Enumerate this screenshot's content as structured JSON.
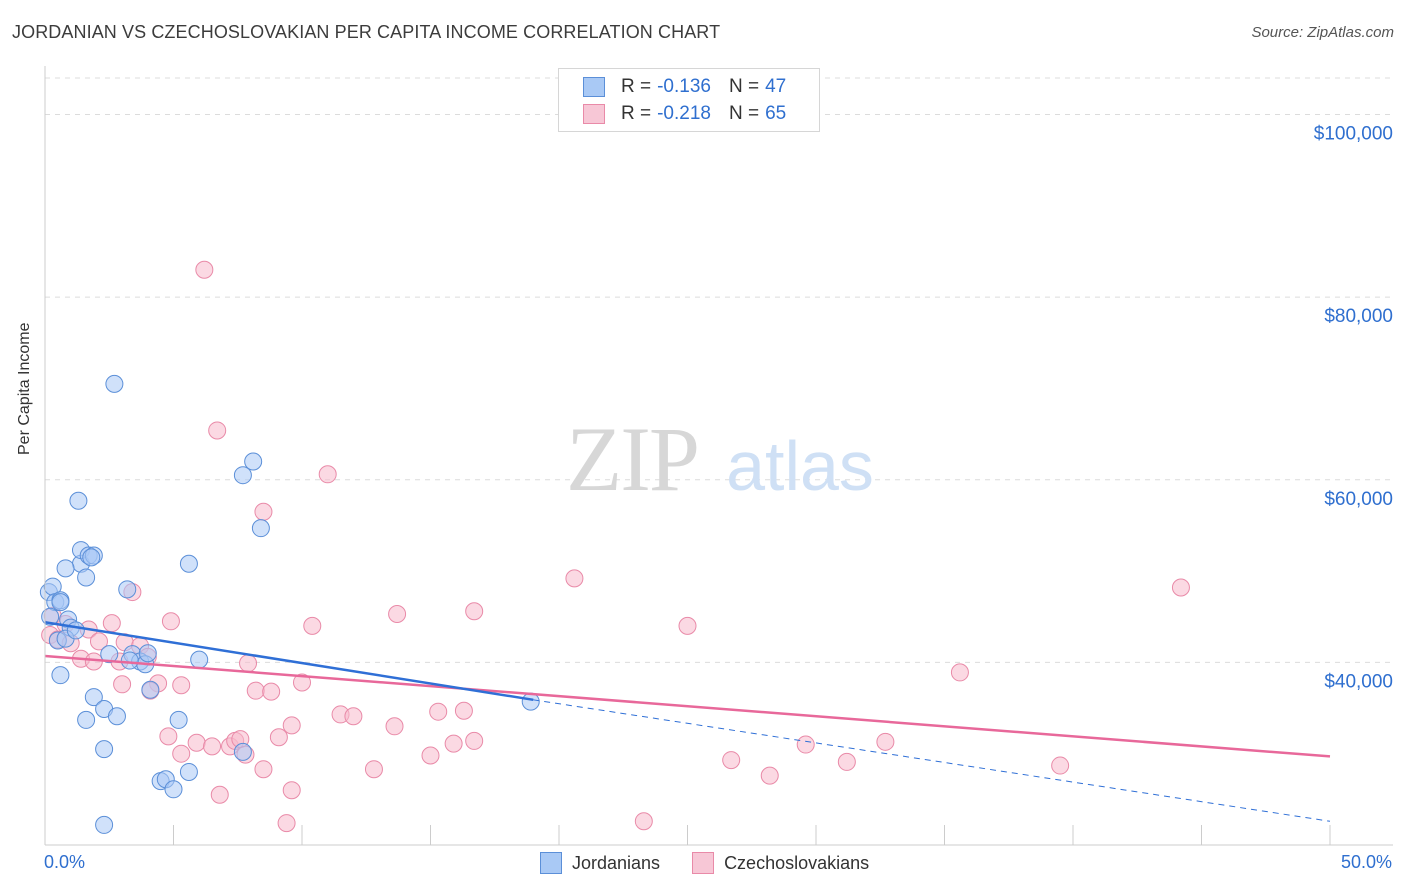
{
  "title": "JORDANIAN VS CZECHOSLOVAKIAN PER CAPITA INCOME CORRELATION CHART",
  "source": "Source: ZipAtlas.com",
  "watermark": {
    "zip": "ZIP",
    "atlas": "atlas"
  },
  "legend": {
    "rows": [
      {
        "r_label": "R = ",
        "r_value": "-0.136",
        "n_label": "N = ",
        "n_value": "47"
      },
      {
        "r_label": "R = ",
        "r_value": "-0.218",
        "n_label": "N = ",
        "n_value": "65"
      }
    ]
  },
  "colors": {
    "blue_fill": "#a9c9f5",
    "blue_stroke": "#5b8fd8",
    "blue_line": "#2f6fd6",
    "pink_fill": "#f7b9cc",
    "pink_stroke": "#e98aa8",
    "pink_line": "#e8689a",
    "axis_text": "#2f6fcf",
    "grid": "#dcdcdc"
  },
  "chart_data": {
    "type": "scatter",
    "title": "JORDANIAN VS CZECHOSLOVAKIAN PER CAPITA INCOME CORRELATION CHART",
    "xlabel": "",
    "ylabel": "Per Capita Income",
    "xlim": [
      0,
      50
    ],
    "ylim": [
      20000,
      104000
    ],
    "x_tick_labels": [
      "0.0%",
      "50.0%"
    ],
    "y_ticks": [
      40000,
      60000,
      80000,
      100000
    ],
    "y_tick_labels": [
      "$40,000",
      "$60,000",
      "$80,000",
      "$100,000"
    ],
    "series": [
      {
        "name": "Jordanians",
        "r": -0.136,
        "n": 47,
        "trend": {
          "x0": 0,
          "y0": 44400,
          "x1": 19,
          "y1": 35900,
          "dash_x1": 50,
          "dash_y1": 22600
        },
        "points": [
          [
            0.15,
            47700
          ],
          [
            0.3,
            48300
          ],
          [
            0.4,
            46600
          ],
          [
            0.6,
            46800
          ],
          [
            0.2,
            45000
          ],
          [
            0.9,
            44700
          ],
          [
            1.0,
            43800
          ],
          [
            0.5,
            42400
          ],
          [
            0.8,
            42600
          ],
          [
            0.6,
            38600
          ],
          [
            2.7,
            70500
          ],
          [
            1.3,
            57700
          ],
          [
            1.4,
            50800
          ],
          [
            1.6,
            49300
          ],
          [
            1.4,
            52300
          ],
          [
            1.7,
            51700
          ],
          [
            1.9,
            51700
          ],
          [
            1.8,
            51500
          ],
          [
            0.8,
            50300
          ],
          [
            3.2,
            48000
          ],
          [
            5.6,
            50800
          ],
          [
            7.7,
            60500
          ],
          [
            8.1,
            62000
          ],
          [
            8.4,
            54700
          ],
          [
            2.5,
            40900
          ],
          [
            3.4,
            40900
          ],
          [
            3.7,
            40100
          ],
          [
            3.9,
            39800
          ],
          [
            6.0,
            40300
          ],
          [
            3.3,
            40200
          ],
          [
            1.9,
            36200
          ],
          [
            2.3,
            34900
          ],
          [
            2.8,
            34100
          ],
          [
            1.6,
            33700
          ],
          [
            5.2,
            33700
          ],
          [
            4.1,
            37000
          ],
          [
            2.3,
            30500
          ],
          [
            7.7,
            30200
          ],
          [
            4.5,
            27000
          ],
          [
            4.7,
            27200
          ],
          [
            5.6,
            28000
          ],
          [
            5.0,
            26100
          ],
          [
            2.3,
            22200
          ],
          [
            18.9,
            35700
          ],
          [
            0.6,
            46600
          ],
          [
            1.2,
            43500
          ],
          [
            4.0,
            41000
          ]
        ]
      },
      {
        "name": "Czechoslovakians",
        "r": -0.218,
        "n": 65,
        "trend": {
          "x0": 0,
          "y0": 40700,
          "x1": 50,
          "y1": 29700
        },
        "points": [
          [
            6.2,
            83000
          ],
          [
            6.7,
            65400
          ],
          [
            8.5,
            56500
          ],
          [
            11.0,
            60600
          ],
          [
            20.6,
            49200
          ],
          [
            44.2,
            48200
          ],
          [
            3.4,
            47700
          ],
          [
            0.3,
            45100
          ],
          [
            0.8,
            44200
          ],
          [
            1.7,
            43600
          ],
          [
            4.9,
            44500
          ],
          [
            10.4,
            44000
          ],
          [
            13.7,
            45300
          ],
          [
            16.7,
            45600
          ],
          [
            25.0,
            44000
          ],
          [
            0.2,
            43000
          ],
          [
            0.5,
            42500
          ],
          [
            1.0,
            42100
          ],
          [
            2.1,
            42300
          ],
          [
            2.6,
            44300
          ],
          [
            3.1,
            42200
          ],
          [
            3.7,
            41800
          ],
          [
            4.0,
            40600
          ],
          [
            1.4,
            40400
          ],
          [
            1.9,
            40100
          ],
          [
            2.9,
            40100
          ],
          [
            7.9,
            39900
          ],
          [
            3.0,
            37600
          ],
          [
            4.4,
            37700
          ],
          [
            5.3,
            37500
          ],
          [
            10.0,
            37800
          ],
          [
            8.2,
            36900
          ],
          [
            8.8,
            36800
          ],
          [
            4.1,
            36900
          ],
          [
            35.6,
            38900
          ],
          [
            11.5,
            34300
          ],
          [
            12.0,
            34100
          ],
          [
            9.6,
            33100
          ],
          [
            13.6,
            33000
          ],
          [
            15.3,
            34600
          ],
          [
            16.3,
            34700
          ],
          [
            4.8,
            31900
          ],
          [
            9.1,
            31800
          ],
          [
            5.9,
            31200
          ],
          [
            5.3,
            30000
          ],
          [
            6.5,
            30800
          ],
          [
            7.2,
            30800
          ],
          [
            7.4,
            31400
          ],
          [
            7.6,
            31600
          ],
          [
            7.8,
            29900
          ],
          [
            15.0,
            29800
          ],
          [
            15.9,
            31100
          ],
          [
            16.7,
            31400
          ],
          [
            26.7,
            29300
          ],
          [
            29.6,
            31000
          ],
          [
            31.2,
            29100
          ],
          [
            32.7,
            31300
          ],
          [
            39.5,
            28700
          ],
          [
            8.5,
            28300
          ],
          [
            12.8,
            28300
          ],
          [
            28.2,
            27600
          ],
          [
            6.8,
            25500
          ],
          [
            9.6,
            26000
          ],
          [
            9.4,
            22400
          ],
          [
            23.3,
            22600
          ]
        ]
      }
    ]
  },
  "bottom_legend": [
    "Jordanians",
    "Czechoslovakians"
  ]
}
